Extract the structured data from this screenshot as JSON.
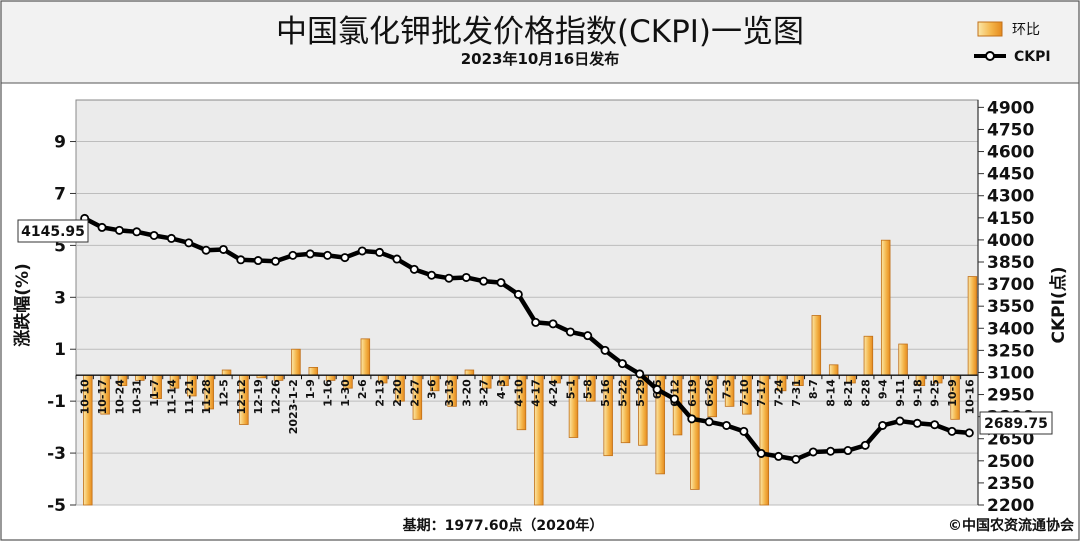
{
  "title": "中国氯化钾批发价格指数(CKPI)一览图",
  "subtitle": "2023年10月16日发布",
  "footer": {
    "base": "基期：1977.60点（2020年）",
    "source": "©中国农资流通协会"
  },
  "legend": {
    "bar_label": "环比",
    "line_label": "CKPI"
  },
  "callouts": {
    "first": "4145.95",
    "last": "2689.75"
  },
  "colors": {
    "bar_fill_light": "#fbe7a8",
    "bar_fill_dark": "#e58a1e",
    "bar_stroke": "#c0701a",
    "line": "#000000",
    "plot_bg": "#ebebeb",
    "header_bg": "#f2f2f2"
  },
  "chart_data": {
    "type": "bar+line",
    "categories": [
      "10-10",
      "10-17",
      "10-24",
      "10-31",
      "11-7",
      "11-14",
      "11-21",
      "11-28",
      "12-5",
      "12-12",
      "12-19",
      "12-26",
      "2023-1-2",
      "1-9",
      "1-16",
      "1-30",
      "2-6",
      "2-13",
      "2-20",
      "2-27",
      "3-6",
      "3-13",
      "3-20",
      "3-27",
      "4-3",
      "4-10",
      "4-17",
      "4-24",
      "5-1",
      "5-8",
      "5-16",
      "5-22",
      "5-29",
      "6-5",
      "6-12",
      "6-19",
      "6-26",
      "7-3",
      "7-10",
      "7-17",
      "7-24",
      "7-31",
      "8-7",
      "8-14",
      "8-21",
      "8-28",
      "9-4",
      "9-11",
      "9-18",
      "9-25",
      "10-9",
      "10-16"
    ],
    "y_left": {
      "label": "涨跌幅(%)",
      "ticks": [
        9,
        7,
        5,
        3,
        1,
        -1,
        -3,
        -5
      ],
      "range": [
        -5,
        10.6
      ]
    },
    "y_right": {
      "label": "CKPI(点)",
      "ticks": [
        4900,
        4750,
        4600,
        4450,
        4300,
        4150,
        4000,
        3850,
        3700,
        3550,
        3400,
        3250,
        3100,
        2950,
        2800,
        2650,
        2500,
        2350,
        2200
      ],
      "range": [
        2200,
        4950
      ]
    },
    "series": [
      {
        "name": "环比",
        "type": "bar",
        "axis": "left",
        "values": [
          -5.0,
          -1.5,
          -0.4,
          -0.2,
          -0.9,
          -0.5,
          -0.8,
          -1.3,
          0.2,
          -1.9,
          -0.1,
          -0.2,
          1.0,
          0.3,
          -0.2,
          -0.5,
          1.4,
          -0.3,
          -1.0,
          -1.7,
          -0.6,
          -1.2,
          0.2,
          -0.5,
          -0.4,
          -2.1,
          -5.0,
          -0.3,
          -2.4,
          -1.0,
          -3.1,
          -2.6,
          -2.7,
          -3.8,
          -2.3,
          -4.4,
          -1.6,
          -1.2,
          -1.5,
          -5.0,
          -0.6,
          -0.4,
          2.3,
          0.4,
          -0.3,
          1.5,
          5.2,
          1.2,
          -0.4,
          -0.3,
          -1.7,
          3.8
        ]
      },
      {
        "name": "CKPI",
        "type": "line",
        "axis": "right",
        "values": [
          4145.95,
          4085,
          4065,
          4055,
          4030,
          4010,
          3980,
          3930,
          3935,
          3865,
          3860,
          3855,
          3895,
          3905,
          3895,
          3880,
          3925,
          3915,
          3870,
          3800,
          3760,
          3740,
          3745,
          3720,
          3710,
          3630,
          3440,
          3430,
          3375,
          3350,
          3250,
          3160,
          3090,
          2985,
          2920,
          2785,
          2765,
          2740,
          2700,
          2550,
          2530,
          2510,
          2560,
          2565,
          2570,
          2605,
          2740,
          2770,
          2755,
          2745,
          2700,
          2689.75
        ]
      }
    ]
  }
}
